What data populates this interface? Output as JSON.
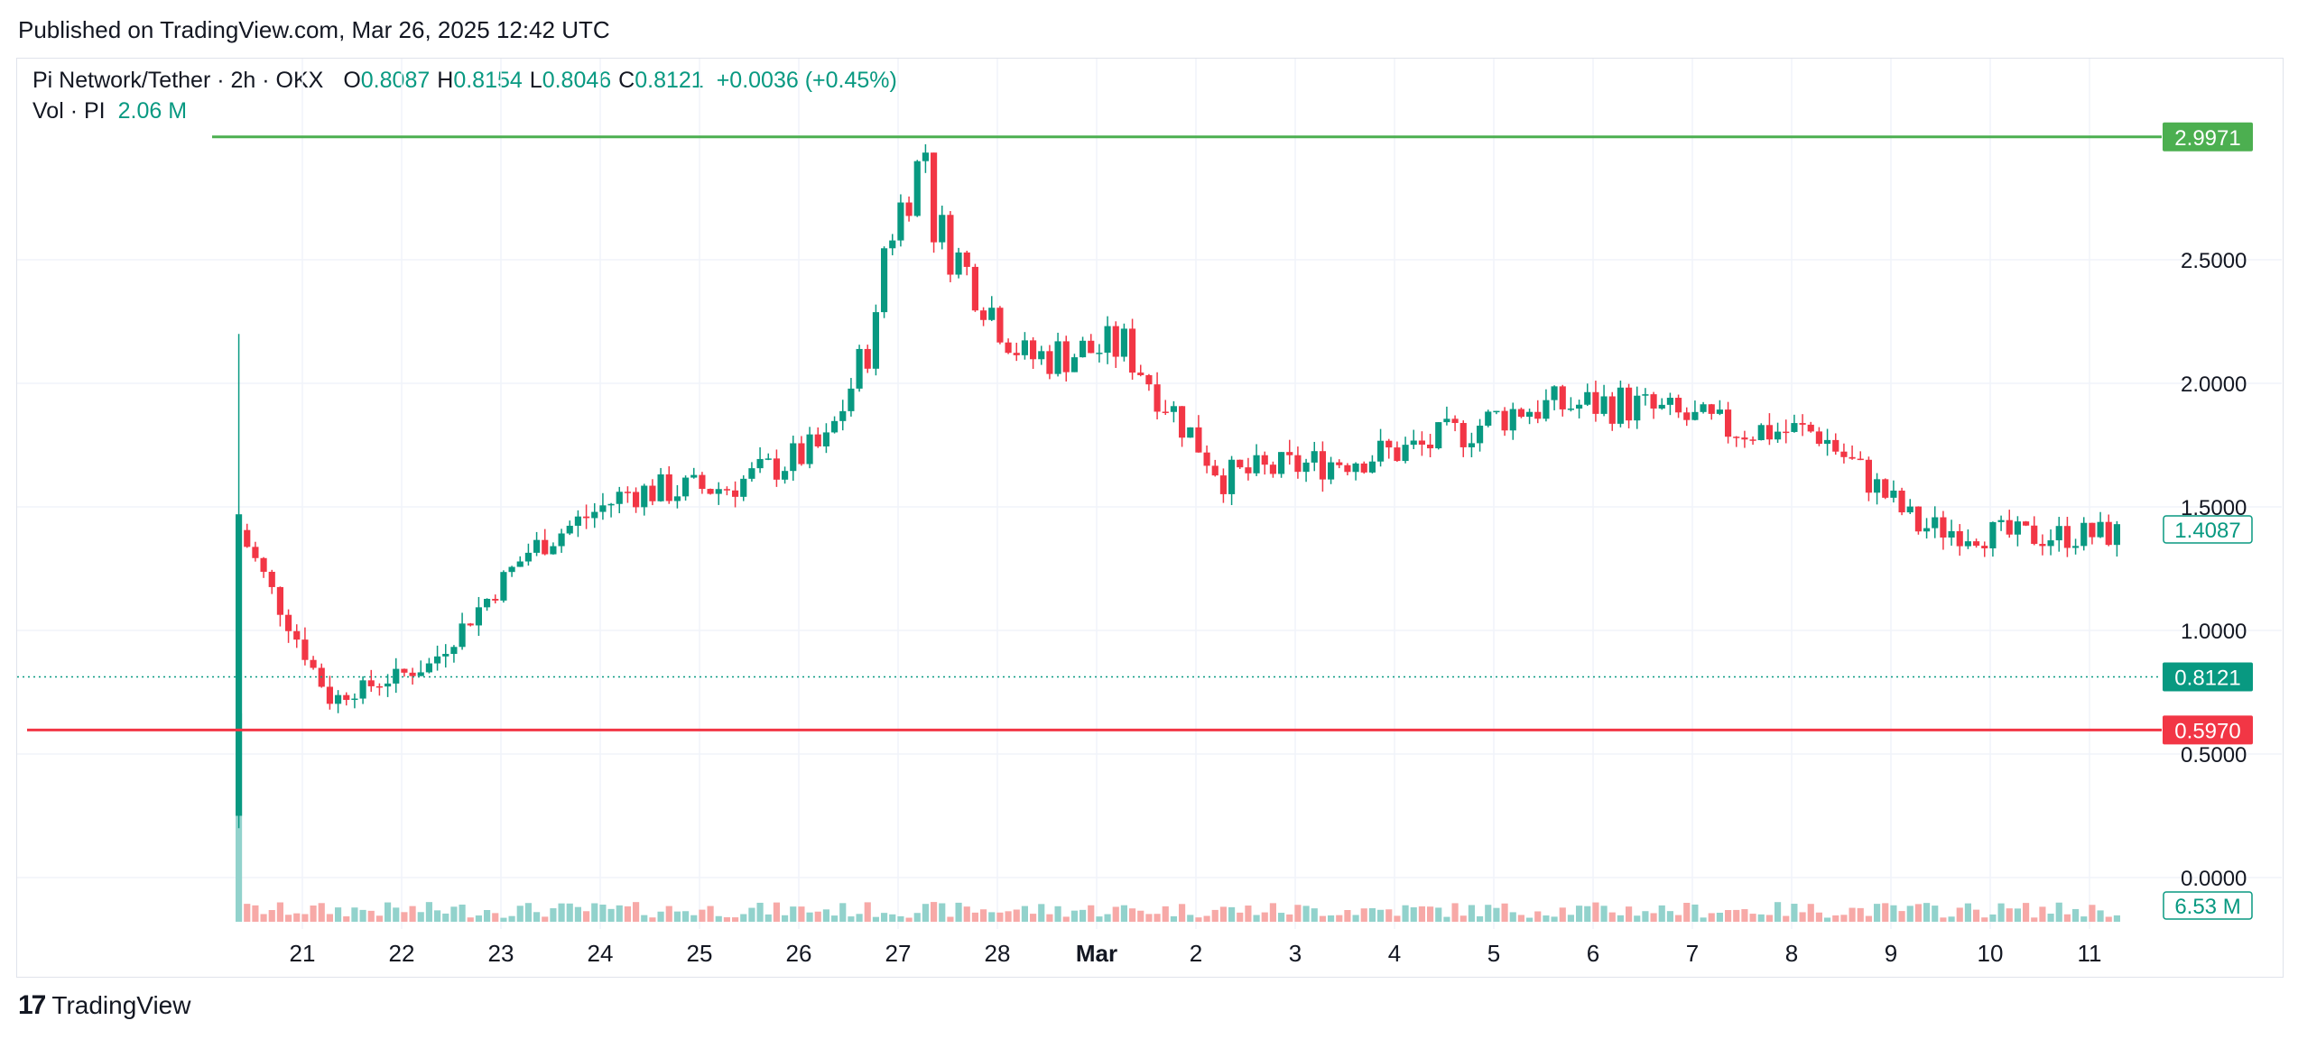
{
  "published": "Published on TradingView.com, Mar 26, 2025 12:42 UTC",
  "legend": {
    "symbol": "Pi Network/Tether · 2h · OKX",
    "o_label": "O",
    "o": "0.8087",
    "h_label": "H",
    "h": "0.8154",
    "l_label": "L",
    "l": "0.8046",
    "c_label": "C",
    "c": "0.8121",
    "change": "+0.0036 (+0.45%)",
    "vol_label": "Vol · PI",
    "vol_value": "2.06 M"
  },
  "footer": {
    "logo": "17",
    "brand": "TradingView"
  },
  "colors": {
    "up": "#089981",
    "down": "#f23645",
    "up_vol": "#92d2cc",
    "down_vol": "#f7a9a7",
    "resistance": "#4caf50",
    "support": "#f23645",
    "grid": "#f0f3fa"
  },
  "chart_data": {
    "type": "candlestick",
    "symbol": "Pi Network/Tether",
    "interval": "2h",
    "exchange": "OKX",
    "x_ticks": [
      "21",
      "22",
      "23",
      "24",
      "25",
      "26",
      "27",
      "28",
      "Mar",
      "2",
      "3",
      "4",
      "5",
      "6",
      "7",
      "8",
      "9",
      "10",
      "11"
    ],
    "y_ticks": [
      "2.5000",
      "2.0000",
      "1.5000",
      "1.0000",
      "0.5000",
      "0.0000"
    ],
    "y_range": [
      -0.2,
      3.05
    ],
    "price_lines": [
      {
        "value": 2.9971,
        "label": "2.9971",
        "color": "#4caf50"
      },
      {
        "value": 0.597,
        "label": "0.5970",
        "color": "#f23645"
      }
    ],
    "last_price": {
      "value": 0.8121,
      "label": "0.8121"
    },
    "marker_label": {
      "value": 1.4087,
      "label": "1.4087"
    },
    "volume_label": "6.53 M",
    "daily_closes": [
      {
        "date": "Feb 20",
        "close": 1.47
      },
      {
        "date": "Feb 21",
        "close": 0.72
      },
      {
        "date": "Feb 22",
        "close": 0.86
      },
      {
        "date": "Feb 23",
        "close": 1.32
      },
      {
        "date": "Feb 24",
        "close": 1.56
      },
      {
        "date": "Feb 25",
        "close": 1.58
      },
      {
        "date": "Feb 26",
        "close": 1.75
      },
      {
        "date": "Feb 27",
        "close": 2.7
      },
      {
        "date": "Feb 28",
        "close": 2.1
      },
      {
        "date": "Mar 1",
        "close": 2.15
      },
      {
        "date": "Mar 2",
        "close": 1.62
      },
      {
        "date": "Mar 3",
        "close": 1.68
      },
      {
        "date": "Mar 4",
        "close": 1.74
      },
      {
        "date": "Mar 5",
        "close": 1.9
      },
      {
        "date": "Mar 6",
        "close": 1.92
      },
      {
        "date": "Mar 7",
        "close": 1.82
      },
      {
        "date": "Mar 8",
        "close": 1.8
      },
      {
        "date": "Mar 9",
        "close": 1.42
      },
      {
        "date": "Mar 10",
        "close": 1.38
      },
      {
        "date": "Mar 11",
        "close": 1.39
      }
    ],
    "peak": 2.9971,
    "low": 0.597
  }
}
